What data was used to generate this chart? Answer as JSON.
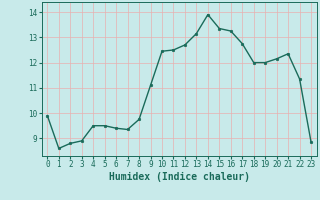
{
  "x": [
    0,
    1,
    2,
    3,
    4,
    5,
    6,
    7,
    8,
    9,
    10,
    11,
    12,
    13,
    14,
    15,
    16,
    17,
    18,
    19,
    20,
    21,
    22,
    23
  ],
  "y": [
    9.9,
    8.6,
    8.8,
    8.9,
    9.5,
    9.5,
    9.4,
    9.35,
    9.75,
    11.1,
    12.45,
    12.5,
    12.7,
    13.15,
    13.9,
    13.35,
    13.25,
    12.75,
    12.0,
    12.0,
    12.15,
    12.35,
    11.35,
    8.85
  ],
  "line_color": "#1a6b5a",
  "marker": "o",
  "markersize": 1.8,
  "linewidth": 1.0,
  "xlabel": "Humidex (Indice chaleur)",
  "xlabel_fontsize": 7,
  "ylim": [
    8.3,
    14.4
  ],
  "yticks": [
    9,
    10,
    11,
    12,
    13,
    14
  ],
  "xtick_labels": [
    "0",
    "1",
    "2",
    "3",
    "4",
    "5",
    "6",
    "7",
    "8",
    "9",
    "10",
    "11",
    "12",
    "13",
    "14",
    "15",
    "16",
    "17",
    "18",
    "19",
    "20",
    "21",
    "22",
    "23"
  ],
  "background_color": "#c8eaea",
  "grid_color": "#e8b0b0",
  "tick_color": "#1a6b5a",
  "tick_fontsize": 5.5,
  "xlabel_fontweight": "bold"
}
